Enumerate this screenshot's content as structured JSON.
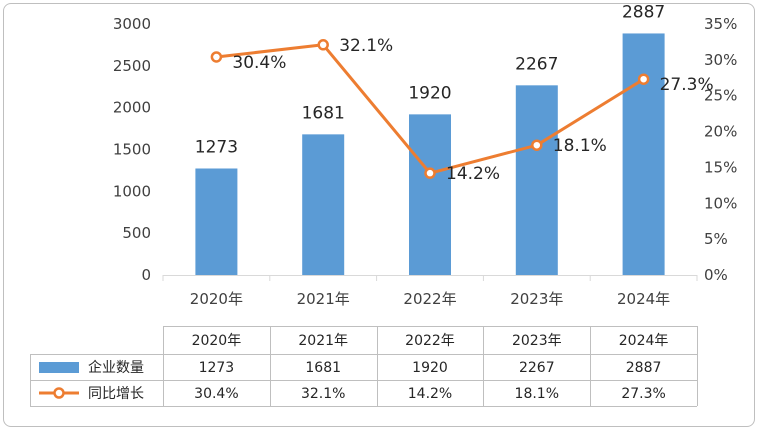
{
  "chart_data": {
    "type": "bar+line",
    "categories": [
      "2020年",
      "2021年",
      "2022年",
      "2023年",
      "2024年"
    ],
    "series": [
      {
        "name": "企业数量",
        "type": "bar",
        "axis": "left",
        "values": [
          1273,
          1681,
          1920,
          2267,
          2887
        ],
        "labels": [
          "1273",
          "1681",
          "1920",
          "2267",
          "2887"
        ],
        "color": "#5b9bd5"
      },
      {
        "name": "同比增长",
        "type": "line",
        "axis": "right",
        "values": [
          30.4,
          32.1,
          14.2,
          18.1,
          27.3
        ],
        "labels": [
          "30.4%",
          "32.1%",
          "14.2%",
          "18.1%",
          "27.3%"
        ],
        "color": "#ed7d31"
      }
    ],
    "y_left": {
      "min": 0,
      "max": 3000,
      "ticks": [
        "0",
        "500",
        "1000",
        "1500",
        "2000",
        "2500",
        "3000"
      ]
    },
    "y_right": {
      "min": 0,
      "max": 35,
      "ticks": [
        "0%",
        "5%",
        "10%",
        "15%",
        "20%",
        "25%",
        "30%",
        "35%"
      ]
    },
    "grid": false,
    "legend": "data-table-bottom"
  }
}
